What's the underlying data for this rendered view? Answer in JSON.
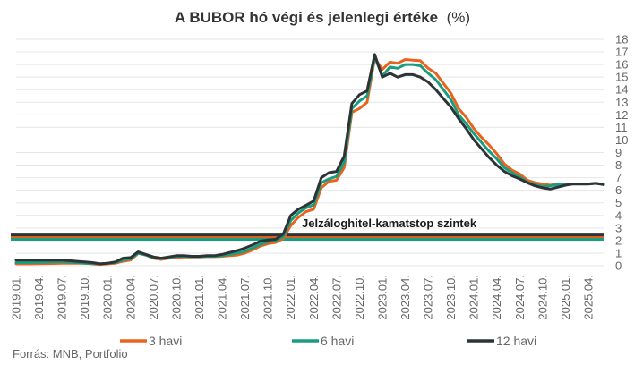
{
  "chart_data": {
    "type": "line",
    "title": "A BUBOR hó végi és jelenlegi értéke",
    "title_unit": "(%)",
    "xlabel": "",
    "ylabel": "",
    "ylim": [
      0,
      18
    ],
    "y_ticks": [
      "0",
      "1",
      "2",
      "3",
      "4",
      "5",
      "6",
      "7",
      "8",
      "9",
      "10",
      "11",
      "12",
      "13",
      "14",
      "15",
      "16",
      "17",
      "18"
    ],
    "x_tick_labels": [
      "2019.01.",
      "2019.04.",
      "2019.07.",
      "2019.10.",
      "2020.01.",
      "2020.04.",
      "2020.07.",
      "2020.10.",
      "2021.01.",
      "2021.04.",
      "2021.07.",
      "2021.10.",
      "2022.01.",
      "2022.04.",
      "2022.07.",
      "2022.10.",
      "2023.01.",
      "2023.04.",
      "2023.07.",
      "2023.10.",
      "2024.01.",
      "2024.04.",
      "2024.07.",
      "2024.10.",
      "2025.01.",
      "2025.04."
    ],
    "grid": "horizontal",
    "legend_position": "bottom",
    "source": "Forrás: MNB, Portfolio",
    "annotation": "Jelzáloghitel-kamatstop  szintek",
    "series": [
      {
        "name": "3 havi",
        "color": "#e8641e",
        "values": [
          0.15,
          0.15,
          0.15,
          0.16,
          0.17,
          0.18,
          0.2,
          0.2,
          0.2,
          0.2,
          0.15,
          0.1,
          0.15,
          0.2,
          0.35,
          0.45,
          0.98,
          0.85,
          0.6,
          0.5,
          0.6,
          0.65,
          0.7,
          0.7,
          0.7,
          0.72,
          0.72,
          0.75,
          0.8,
          0.85,
          1.0,
          1.25,
          1.55,
          1.75,
          1.85,
          2.15,
          3.2,
          3.85,
          4.3,
          4.5,
          6.2,
          6.7,
          6.8,
          7.8,
          12.2,
          12.5,
          13.0,
          16.5,
          15.6,
          16.2,
          16.1,
          16.4,
          16.35,
          16.3,
          15.7,
          15.3,
          14.5,
          13.7,
          12.5,
          11.8,
          10.9,
          10.2,
          9.6,
          8.9,
          8.1,
          7.6,
          7.3,
          6.8,
          6.6,
          6.5,
          6.4,
          6.5,
          6.5,
          6.5,
          6.5,
          6.5,
          6.55,
          6.45
        ]
      },
      {
        "name": "6 havi",
        "color": "#1a9c7e",
        "values": [
          0.25,
          0.25,
          0.25,
          0.27,
          0.28,
          0.3,
          0.3,
          0.28,
          0.25,
          0.2,
          0.18,
          0.15,
          0.2,
          0.25,
          0.45,
          0.55,
          1.0,
          0.85,
          0.65,
          0.55,
          0.65,
          0.75,
          0.75,
          0.72,
          0.72,
          0.75,
          0.75,
          0.8,
          0.9,
          1.0,
          1.15,
          1.4,
          1.7,
          1.9,
          2.0,
          2.3,
          3.6,
          4.2,
          4.6,
          4.85,
          6.6,
          6.9,
          7.1,
          8.2,
          12.5,
          13.1,
          13.5,
          16.6,
          15.1,
          15.8,
          15.7,
          16.0,
          16.0,
          15.9,
          15.3,
          14.8,
          14.0,
          13.2,
          12.0,
          11.3,
          10.5,
          9.8,
          9.1,
          8.5,
          7.8,
          7.4,
          7.05,
          6.65,
          6.45,
          6.3,
          6.35,
          6.45,
          6.5,
          6.5,
          6.5,
          6.5,
          6.55,
          6.45
        ]
      },
      {
        "name": "12 havi",
        "color": "#2e3336",
        "values": [
          0.45,
          0.45,
          0.45,
          0.45,
          0.45,
          0.45,
          0.45,
          0.4,
          0.35,
          0.3,
          0.25,
          0.15,
          0.2,
          0.3,
          0.6,
          0.65,
          1.1,
          0.9,
          0.7,
          0.6,
          0.7,
          0.8,
          0.8,
          0.75,
          0.75,
          0.8,
          0.8,
          0.9,
          1.05,
          1.2,
          1.4,
          1.65,
          1.95,
          2.05,
          2.1,
          2.5,
          4.0,
          4.5,
          4.8,
          5.15,
          7.0,
          7.4,
          7.5,
          8.7,
          12.9,
          13.6,
          13.9,
          16.8,
          15.0,
          15.3,
          15.0,
          15.2,
          15.2,
          15.0,
          14.6,
          14.0,
          13.3,
          12.6,
          11.7,
          10.9,
          10.0,
          9.3,
          8.6,
          8.0,
          7.5,
          7.15,
          6.9,
          6.6,
          6.35,
          6.2,
          6.1,
          6.25,
          6.4,
          6.5,
          6.5,
          6.5,
          6.55,
          6.45
        ]
      }
    ],
    "reference_lines": [
      {
        "value": 2.3,
        "color": "#e8641e"
      },
      {
        "value": 2.1,
        "color": "#1a9c7e"
      },
      {
        "value": 2.45,
        "color": "#2e3336"
      }
    ]
  }
}
